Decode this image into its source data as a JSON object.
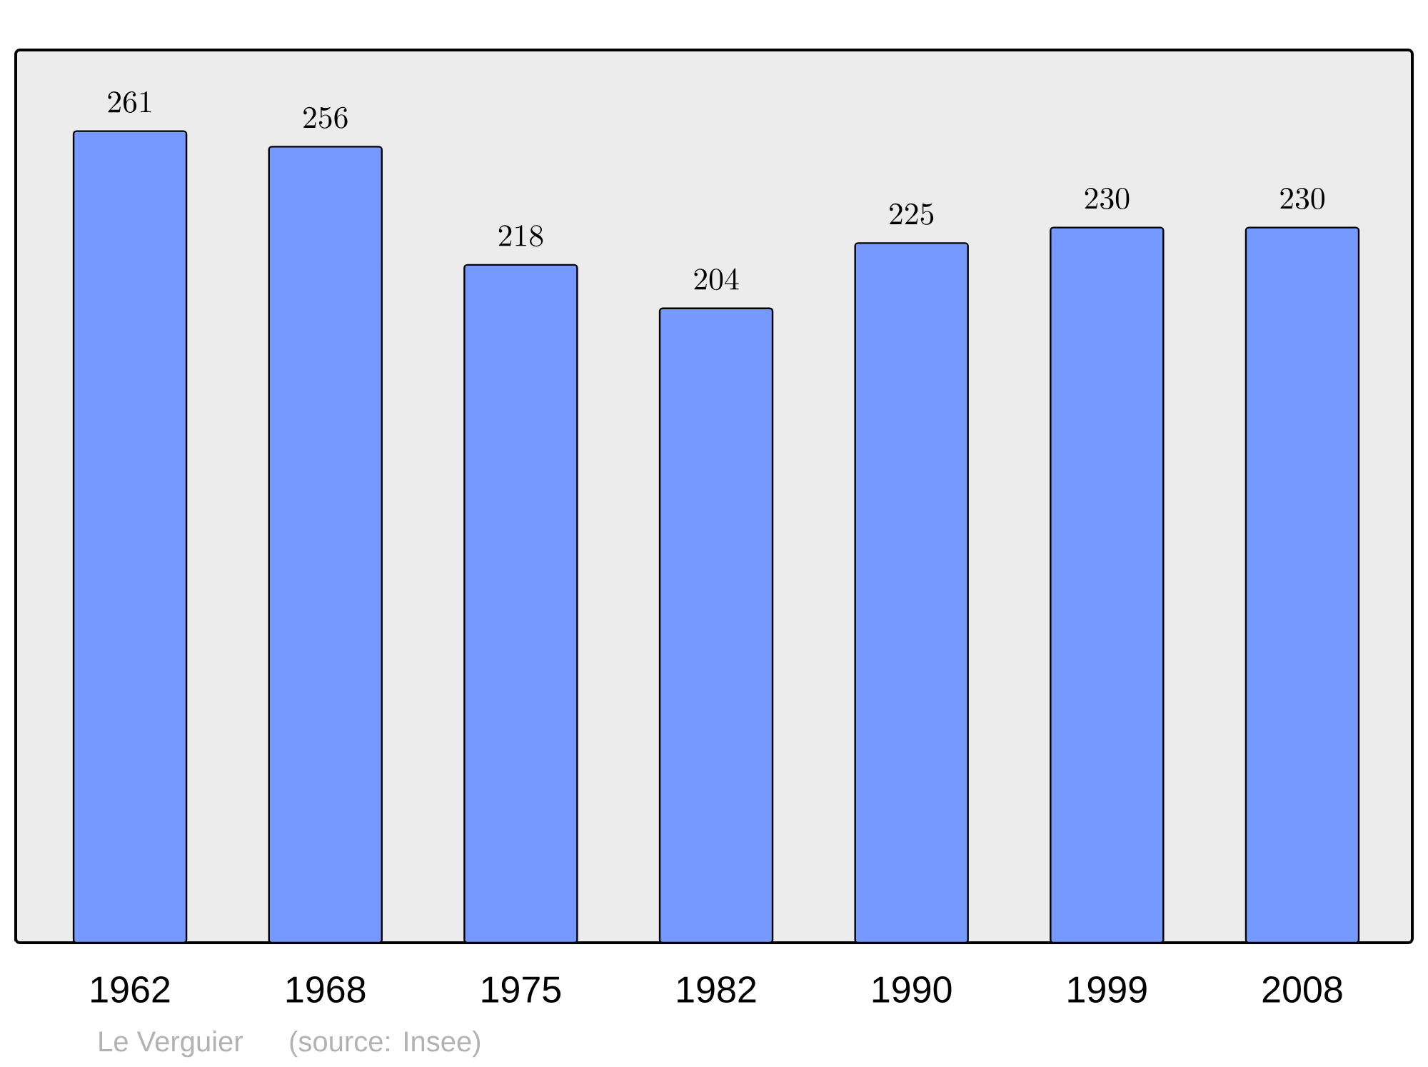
{
  "chart_data": {
    "type": "bar",
    "categories": [
      "1962",
      "1968",
      "1975",
      "1982",
      "1990",
      "1999",
      "2008"
    ],
    "values": [
      261,
      256,
      218,
      204,
      225,
      230,
      230
    ],
    "color": "#7599ff",
    "data_labels": true,
    "annotations": [
      "Le Verguier",
      "(source: Insee)"
    ]
  }
}
